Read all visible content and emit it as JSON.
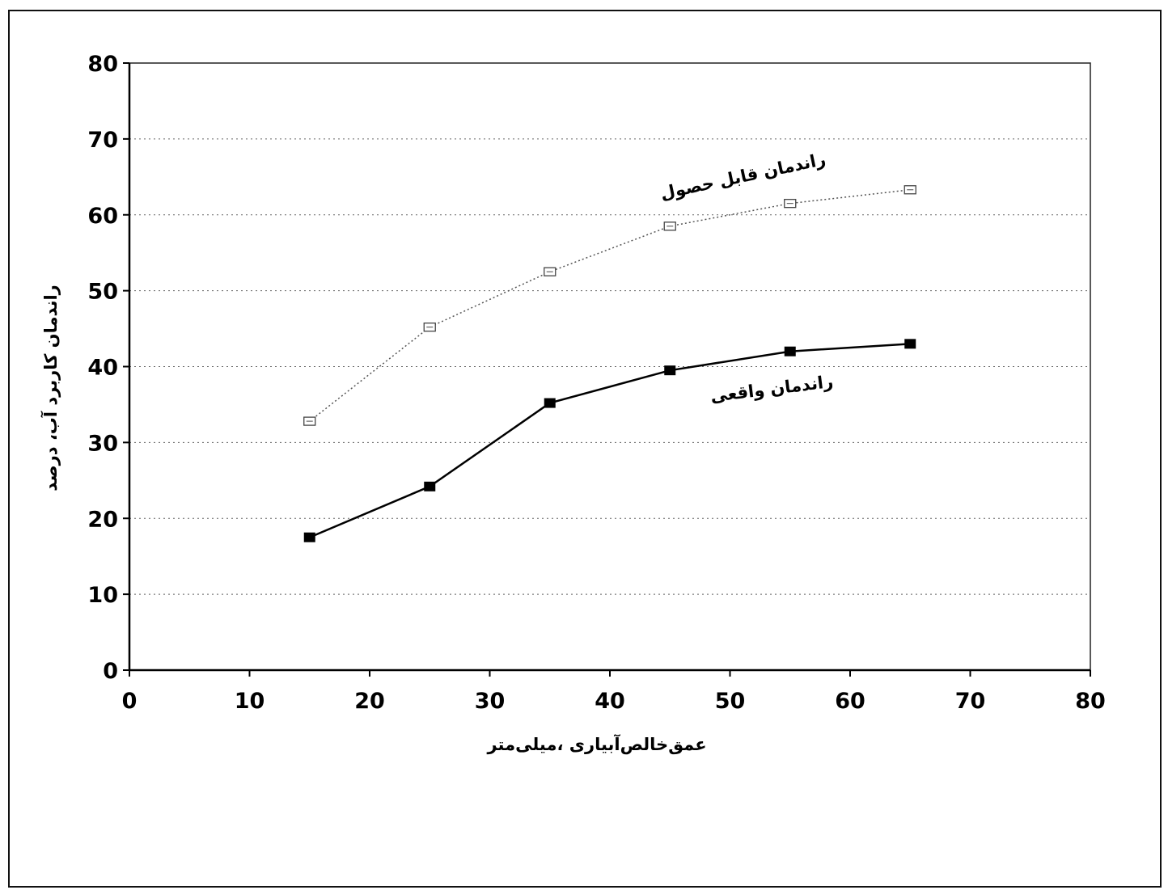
{
  "chart_data": {
    "type": "line",
    "title": "",
    "xlabel": "عمق‌خالص‌آبیاری ،میلی‌متر",
    "ylabel": "راندمان کاربرد آب، درصد",
    "xlim": [
      0,
      80
    ],
    "ylim": [
      0,
      80
    ],
    "xticks": [
      "0",
      "10",
      "20",
      "30",
      "40",
      "50",
      "60",
      "70",
      "80"
    ],
    "yticks": [
      "0",
      "10",
      "20",
      "30",
      "40",
      "50",
      "60",
      "70",
      "80"
    ],
    "grid": "horizontal-dotted",
    "legend": "none",
    "x": [
      15,
      25,
      35,
      45,
      55,
      65
    ],
    "series": [
      {
        "name": "راندمان قابل حصول",
        "values": [
          32.8,
          45.2,
          52.5,
          58.5,
          61.5,
          63.3
        ],
        "line_style": "dotted",
        "marker": "open-square",
        "color": "#555555"
      },
      {
        "name": "راندمان واقعی",
        "values": [
          17.5,
          24.2,
          35.2,
          39.5,
          42.0,
          43.0
        ],
        "line_style": "solid",
        "marker": "filled-square",
        "color": "#000000"
      }
    ]
  }
}
